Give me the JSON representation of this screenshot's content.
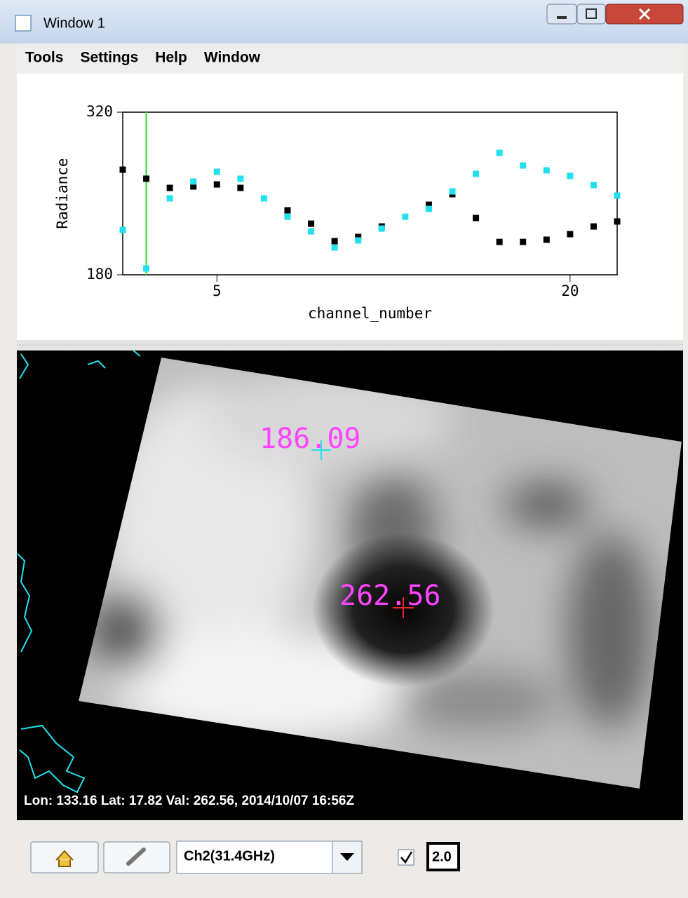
{
  "window_title": "Window 1",
  "menu": [
    "Tools",
    "Settings",
    "Help",
    "Window"
  ],
  "chart_data": {
    "type": "scatter",
    "x_label": "channel_number",
    "y_label": "Radiance",
    "x": [
      1,
      2,
      3,
      4,
      5,
      6,
      7,
      8,
      9,
      10,
      11,
      12,
      13,
      14,
      15,
      16,
      17,
      18,
      19,
      20,
      21,
      22
    ],
    "series": [
      {
        "color": "#000000",
        "values": [
          270.5,
          262.7,
          254.8,
          256,
          257.8,
          254.8,
          null,
          235.5,
          224,
          209,
          212.6,
          221.6,
          null,
          240.3,
          249.4,
          228.9,
          208.3,
          208.3,
          210.2,
          215,
          221.6,
          225.9
        ]
      },
      {
        "color": "#22e0ee",
        "values": [
          218.6,
          185.4,
          245.8,
          260.3,
          268.7,
          262.7,
          245.8,
          230,
          217.4,
          203.5,
          209.6,
          219.8,
          230,
          236.7,
          251.8,
          266.9,
          285,
          274.1,
          269.9,
          265.1,
          257.2,
          248.2
        ]
      }
    ],
    "cursor_x": 2,
    "cursor_color": "#22dd22",
    "xlim": [
      1,
      22
    ],
    "ylim": [
      180,
      320
    ],
    "xticks": [
      5,
      20
    ],
    "yticks": [
      180,
      320
    ]
  },
  "image_labels": [
    "186.09",
    "262.56"
  ],
  "status": "Lon: 133.16  Lat: 17.82  Val: 262.56,  2014/10/07  16:56Z",
  "channel_select": "Ch2(31.4GHz)",
  "line_width": "2.0"
}
